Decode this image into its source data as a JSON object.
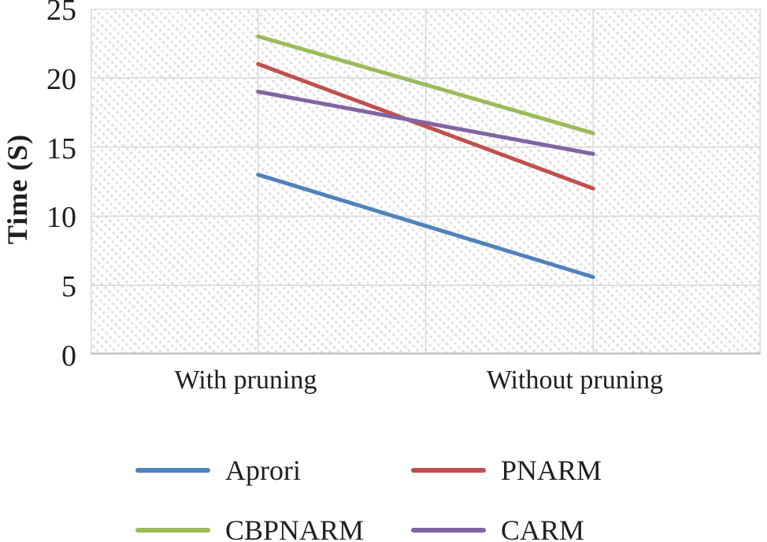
{
  "chart_data": {
    "type": "line",
    "title": "",
    "categories": [
      "With pruning",
      "Without pruning"
    ],
    "series": [
      {
        "name": "Aprori",
        "color": "#4F81BD",
        "values": [
          13,
          5.6
        ]
      },
      {
        "name": "PNARM",
        "color": "#C0504D",
        "values": [
          21,
          12
        ]
      },
      {
        "name": "CBPNARM",
        "color": "#9BBB59",
        "values": [
          23,
          16
        ]
      },
      {
        "name": "CARM",
        "color": "#8064A2",
        "values": [
          19,
          14.5
        ]
      }
    ],
    "xlabel": "",
    "ylabel": "Time (S)",
    "ylim": [
      0,
      25
    ],
    "yticks": [
      0,
      5,
      10,
      15,
      20,
      25
    ],
    "grid": "on",
    "plot_background": "diagonal-hatch-pattern",
    "legend_position": "bottom",
    "legend_columns": 2,
    "colors": {
      "gridline": "#D9D9D9",
      "axis_line": "#C3C3C3",
      "text": "#1F1F1F",
      "plot_hatch": "#E2E2E2"
    }
  }
}
